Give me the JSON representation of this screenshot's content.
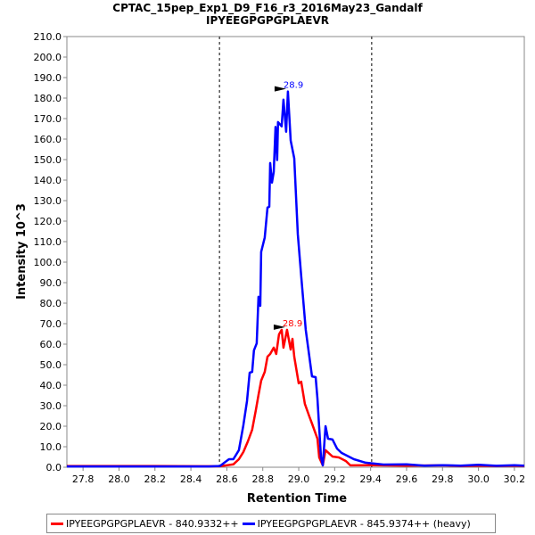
{
  "chart_data": {
    "type": "line",
    "title": "CPTAC_15pep_Exp1_D9_F16_r3_2016May23_Gandalf",
    "subtitle": "IPYEEGPGPGPLAEVR",
    "xlabel": "Retention Time",
    "ylabel": "Intensity 10^3",
    "xlim": [
      27.71,
      30.255
    ],
    "ylim": [
      0,
      210
    ],
    "xticks": [
      "27.8",
      "28.0",
      "28.2",
      "28.4",
      "28.6",
      "28.8",
      "29.0",
      "29.2",
      "29.4",
      "29.6",
      "29.8",
      "30.0",
      "30.2"
    ],
    "yticks": [
      "0.0",
      "10.0",
      "20.0",
      "30.0",
      "40.0",
      "50.0",
      "60.0",
      "70.0",
      "80.0",
      "90.0",
      "100.0",
      "110.0",
      "120.0",
      "130.0",
      "140.0",
      "150.0",
      "160.0",
      "170.0",
      "180.0",
      "190.0",
      "200.0",
      "210.0"
    ],
    "grid": false,
    "legend_position": "bottom",
    "integration_bounds": [
      28.559,
      29.406
    ],
    "series": [
      {
        "name": "IPYEEGPGPGPLAEVR - 840.9332++",
        "color": "#ff0000",
        "peak_label": "28.9",
        "peak": [
          28.935,
          67.0
        ],
        "x": [
          27.71,
          28.2,
          28.48,
          28.56,
          28.636,
          28.667,
          28.692,
          28.717,
          28.741,
          28.761,
          28.776,
          28.791,
          28.811,
          28.826,
          28.841,
          28.861,
          28.875,
          28.89,
          28.905,
          28.915,
          28.935,
          28.955,
          28.965,
          28.975,
          29.0,
          29.014,
          29.034,
          29.059,
          29.074,
          29.104,
          29.114,
          29.134,
          29.149,
          29.188,
          29.223,
          29.263,
          29.287,
          29.4,
          29.6,
          29.8,
          29.9,
          30.0,
          30.1,
          30.2,
          30.255
        ],
        "y": [
          0.6,
          0.6,
          0.5,
          0.5,
          1.4,
          3.9,
          7.4,
          12.6,
          18.3,
          27.8,
          35.2,
          42.2,
          46.5,
          53.9,
          55.2,
          58.3,
          55.2,
          64.8,
          67.0,
          58.3,
          67.0,
          57.4,
          62.6,
          53.9,
          40.9,
          41.7,
          30.9,
          24.8,
          21.3,
          13.9,
          4.8,
          0.9,
          8.3,
          5.2,
          4.8,
          3.0,
          0.9,
          1.0,
          0.8,
          0.9,
          0.6,
          0.8,
          0.6,
          0.8,
          0.6
        ]
      },
      {
        "name": "IPYEEGPGPGPLAEVR - 845.9374++ (heavy)",
        "color": "#0000ff",
        "peak_label": "28.9",
        "peak": [
          28.94,
          183.2
        ],
        "x": [
          27.71,
          28.2,
          28.5,
          28.562,
          28.612,
          28.636,
          28.667,
          28.692,
          28.712,
          28.727,
          28.741,
          28.751,
          28.766,
          28.776,
          28.786,
          28.791,
          28.811,
          28.826,
          28.836,
          28.841,
          28.851,
          28.861,
          28.871,
          28.88,
          28.885,
          28.905,
          28.915,
          28.93,
          28.94,
          28.955,
          28.975,
          28.995,
          29.014,
          29.039,
          29.074,
          29.094,
          29.104,
          29.124,
          29.134,
          29.149,
          29.163,
          29.188,
          29.213,
          29.238,
          29.307,
          29.372,
          29.471,
          29.6,
          29.7,
          29.8,
          29.9,
          30.0,
          30.1,
          30.2,
          30.255
        ],
        "y": [
          0.4,
          0.4,
          0.4,
          0.6,
          3.9,
          3.9,
          8.3,
          20.4,
          32.2,
          46.1,
          46.5,
          57.0,
          60.4,
          83.1,
          78.7,
          105,
          112,
          126.6,
          127,
          148.3,
          138.8,
          144,
          165.9,
          149.8,
          168.3,
          166.2,
          179.2,
          163.6,
          183.2,
          159.3,
          150.6,
          113.6,
          93.2,
          67.0,
          44.3,
          43.9,
          33.5,
          4.8,
          0.9,
          20,
          13.9,
          13.5,
          9.1,
          7.0,
          3.9,
          2.2,
          1.3,
          1.4,
          0.8,
          1.0,
          0.8,
          1.2,
          0.7,
          1.0,
          0.8
        ]
      }
    ]
  }
}
